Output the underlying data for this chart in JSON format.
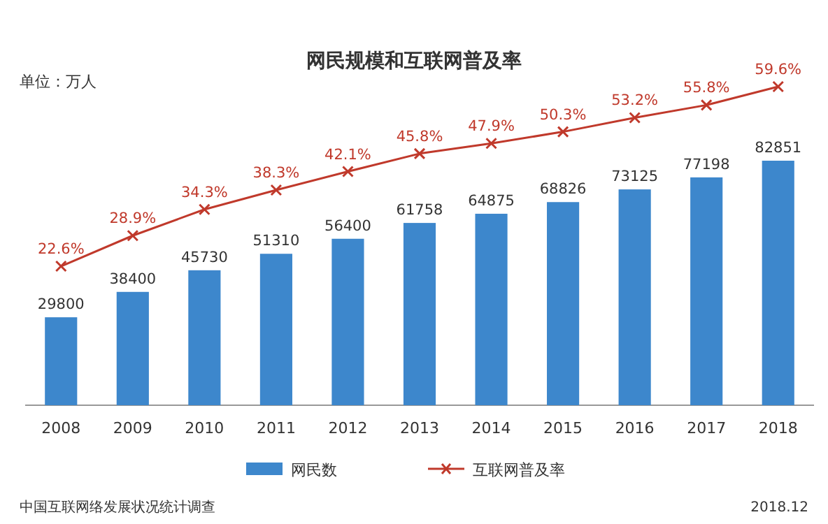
{
  "chart_data": {
    "type": "bar",
    "title": "网民规模和互联网普及率",
    "categories": [
      "2008",
      "2009",
      "2010",
      "2011",
      "2012",
      "2013",
      "2014",
      "2015",
      "2016",
      "2017",
      "2018"
    ],
    "series": [
      {
        "name": "网民数",
        "color": "#3d87cc",
        "values": [
          29800,
          38400,
          45730,
          51310,
          56400,
          61758,
          64875,
          68826,
          73125,
          77198,
          82851
        ]
      },
      {
        "name": "互联网普及率",
        "type": "line",
        "axis": "y2",
        "color": "#c0392b",
        "marker": "cross",
        "values": [
          22.6,
          28.9,
          34.3,
          38.3,
          42.1,
          45.8,
          47.9,
          50.3,
          53.2,
          55.8,
          59.6
        ],
        "value_labels": [
          "22.6%",
          "28.9%",
          "34.3%",
          "38.3%",
          "42.1%",
          "45.8%",
          "47.9%",
          "50.3%",
          "53.2%",
          "55.8%",
          "59.6%"
        ]
      }
    ],
    "data_labels": true,
    "relative": false,
    "legend": "bottom",
    "annotations": [
      "单位：万人",
      "中国互联网络发展状况统计调查",
      "2018.12"
    ]
  }
}
